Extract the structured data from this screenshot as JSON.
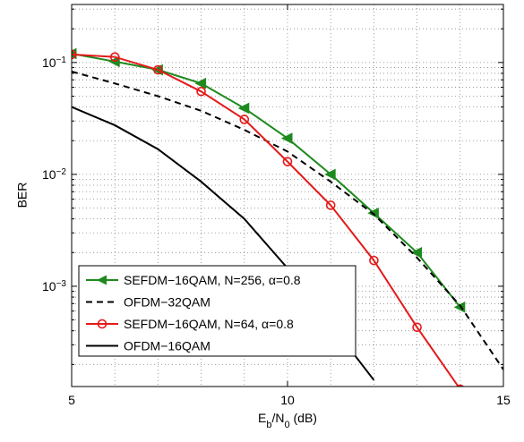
{
  "chart_data": {
    "type": "line",
    "yscale": "log",
    "grid": true,
    "xlabel": [
      "E",
      "b",
      "/N",
      "0",
      " (dB)"
    ],
    "ylabel": "BER",
    "x": [
      5,
      6,
      7,
      8,
      9,
      10,
      11,
      12,
      13,
      14,
      15
    ],
    "xlim": [
      5,
      15
    ],
    "xticks": [
      5,
      10,
      15
    ],
    "xminorticks": [
      6,
      7,
      8,
      9,
      11,
      12,
      13,
      14
    ],
    "ylim": [
      0.000127,
      0.33
    ],
    "yticks": [
      {
        "value": 0.001,
        "label": "10",
        "exponent": "−3"
      },
      {
        "value": 0.01,
        "label": "10",
        "exponent": "−2"
      },
      {
        "value": 0.1,
        "label": "10",
        "exponent": "−1"
      }
    ],
    "yminorticks": [
      0.0002,
      0.0003,
      0.0004,
      0.0005,
      0.0006,
      0.0007,
      0.0008,
      0.0009,
      0.002,
      0.003,
      0.004,
      0.005,
      0.006,
      0.007,
      0.008,
      0.009,
      0.02,
      0.03,
      0.04,
      0.05,
      0.06,
      0.07,
      0.08,
      0.09,
      0.2,
      0.3
    ],
    "legend": "lower-left",
    "series": [
      {
        "name": "SEFDM−16QAM, N=256, α=0.8",
        "color": "#1e8a1e",
        "marker": "triangle-left",
        "dash": "solid",
        "values": [
          0.12,
          0.102,
          0.086,
          0.065,
          0.039,
          0.021,
          0.01,
          0.0045,
          0.002,
          0.00065,
          null
        ]
      },
      {
        "name": "OFDM−32QAM",
        "color": "#000000",
        "marker": "none",
        "dash": "dashed",
        "values": [
          0.083,
          0.065,
          0.05,
          0.037,
          0.025,
          0.016,
          0.0086,
          0.0044,
          0.0018,
          0.00067,
          0.00018
        ]
      },
      {
        "name": "SEFDM−16QAM, N=64, α=0.8",
        "color": "#e41a1a",
        "marker": "circle",
        "dash": "solid",
        "values": [
          0.118,
          0.112,
          0.086,
          0.055,
          0.031,
          0.013,
          0.0053,
          0.0017,
          0.00043,
          0.00012,
          null
        ]
      },
      {
        "name": "OFDM−16QAM",
        "color": "#000000",
        "marker": "none",
        "dash": "solid",
        "values": [
          0.04,
          0.0275,
          0.0168,
          0.0086,
          0.004,
          0.00145,
          0.00046,
          0.000145,
          null,
          null,
          null
        ]
      }
    ]
  }
}
